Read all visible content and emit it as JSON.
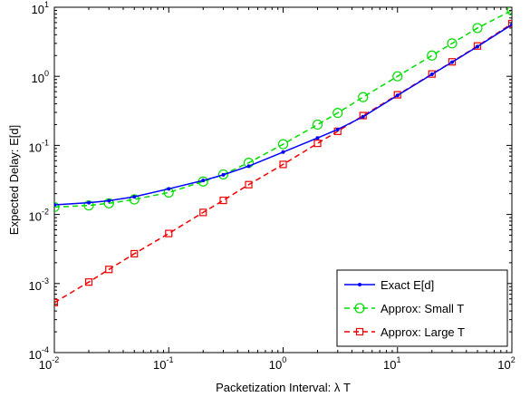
{
  "chart_data": {
    "type": "line",
    "title": "",
    "xlabel": "Packetization Interval: λ T",
    "ylabel": "Expected Delay: E[d]",
    "xscale": "log",
    "yscale": "log",
    "xlim": [
      0.01,
      100
    ],
    "ylim": [
      0.0001,
      10
    ],
    "grid": false,
    "legend_position": "bottom-right",
    "x_ticks": [
      {
        "base": "10",
        "exp": "-2",
        "value": 0.01
      },
      {
        "base": "10",
        "exp": "-1",
        "value": 0.1
      },
      {
        "base": "10",
        "exp": "0",
        "value": 1
      },
      {
        "base": "10",
        "exp": "1",
        "value": 10
      },
      {
        "base": "10",
        "exp": "2",
        "value": 100
      }
    ],
    "y_ticks": [
      {
        "base": "10",
        "exp": "-4",
        "value": 0.0001
      },
      {
        "base": "10",
        "exp": "-3",
        "value": 0.001
      },
      {
        "base": "10",
        "exp": "-2",
        "value": 0.01
      },
      {
        "base": "10",
        "exp": "-1",
        "value": 0.1
      },
      {
        "base": "10",
        "exp": "0",
        "value": 1
      },
      {
        "base": "10",
        "exp": "1",
        "value": 10
      }
    ],
    "series": [
      {
        "name": "Exact E[d]",
        "color": "#0000ff",
        "line_style": "solid",
        "marker": "point",
        "x": [
          0.01,
          0.02,
          0.03,
          0.05,
          0.1,
          0.2,
          0.3,
          0.5,
          1,
          2,
          3,
          5,
          10,
          20,
          30,
          50,
          100
        ],
        "y": [
          0.0138,
          0.0148,
          0.0158,
          0.018,
          0.0235,
          0.031,
          0.0375,
          0.05,
          0.08,
          0.128,
          0.17,
          0.26,
          0.53,
          1.07,
          1.6,
          2.7,
          5.6
        ]
      },
      {
        "name": "Approx: Small T",
        "color": "#00dd00",
        "line_style": "dashed",
        "marker": "circle",
        "x": [
          0.01,
          0.02,
          0.03,
          0.05,
          0.1,
          0.2,
          0.3,
          0.5,
          1,
          2,
          3,
          5,
          10,
          20,
          30,
          50,
          100
        ],
        "y": [
          0.0128,
          0.0135,
          0.0145,
          0.0165,
          0.0208,
          0.03,
          0.038,
          0.056,
          0.104,
          0.2,
          0.295,
          0.5,
          1.0,
          2.0,
          3.0,
          5.0,
          9.0
        ]
      },
      {
        "name": "Approx: Large T",
        "color": "#ee0000",
        "line_style": "dashed",
        "marker": "square",
        "x": [
          0.01,
          0.02,
          0.03,
          0.05,
          0.1,
          0.2,
          0.3,
          0.5,
          1,
          2,
          3,
          5,
          10,
          20,
          30,
          50,
          100
        ],
        "y": [
          0.00053,
          0.00105,
          0.0016,
          0.0027,
          0.0053,
          0.0107,
          0.016,
          0.027,
          0.053,
          0.107,
          0.16,
          0.27,
          0.54,
          1.08,
          1.62,
          2.75,
          5.8
        ]
      }
    ]
  }
}
